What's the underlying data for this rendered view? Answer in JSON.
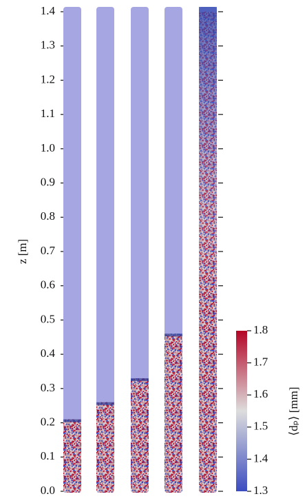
{
  "chart_data": {
    "type": "bed",
    "ylabel": "z [m]",
    "ylim": [
      0,
      1.4
    ],
    "yticks": [
      {
        "value": 0,
        "label": "0.0"
      },
      0.1,
      0.2,
      0.3,
      0.4,
      0.5,
      0.6,
      0.7,
      0.8,
      0.9,
      {
        "value": 1,
        "label": "1.0"
      },
      1.1,
      1.2,
      1.3,
      1.4
    ],
    "values": [
      0.21,
      0.26,
      0.33,
      0.46,
      1.4
    ],
    "colorbar": {
      "label": "⟨dₚ⟩ [mm]",
      "lim": [
        1.3,
        1.8
      ],
      "ticks": [
        1.3,
        1.4,
        1.5,
        1.6,
        1.7,
        1.8
      ],
      "colors": [
        "#3b4cc0",
        "#dddddd",
        "#b40426"
      ]
    }
  }
}
